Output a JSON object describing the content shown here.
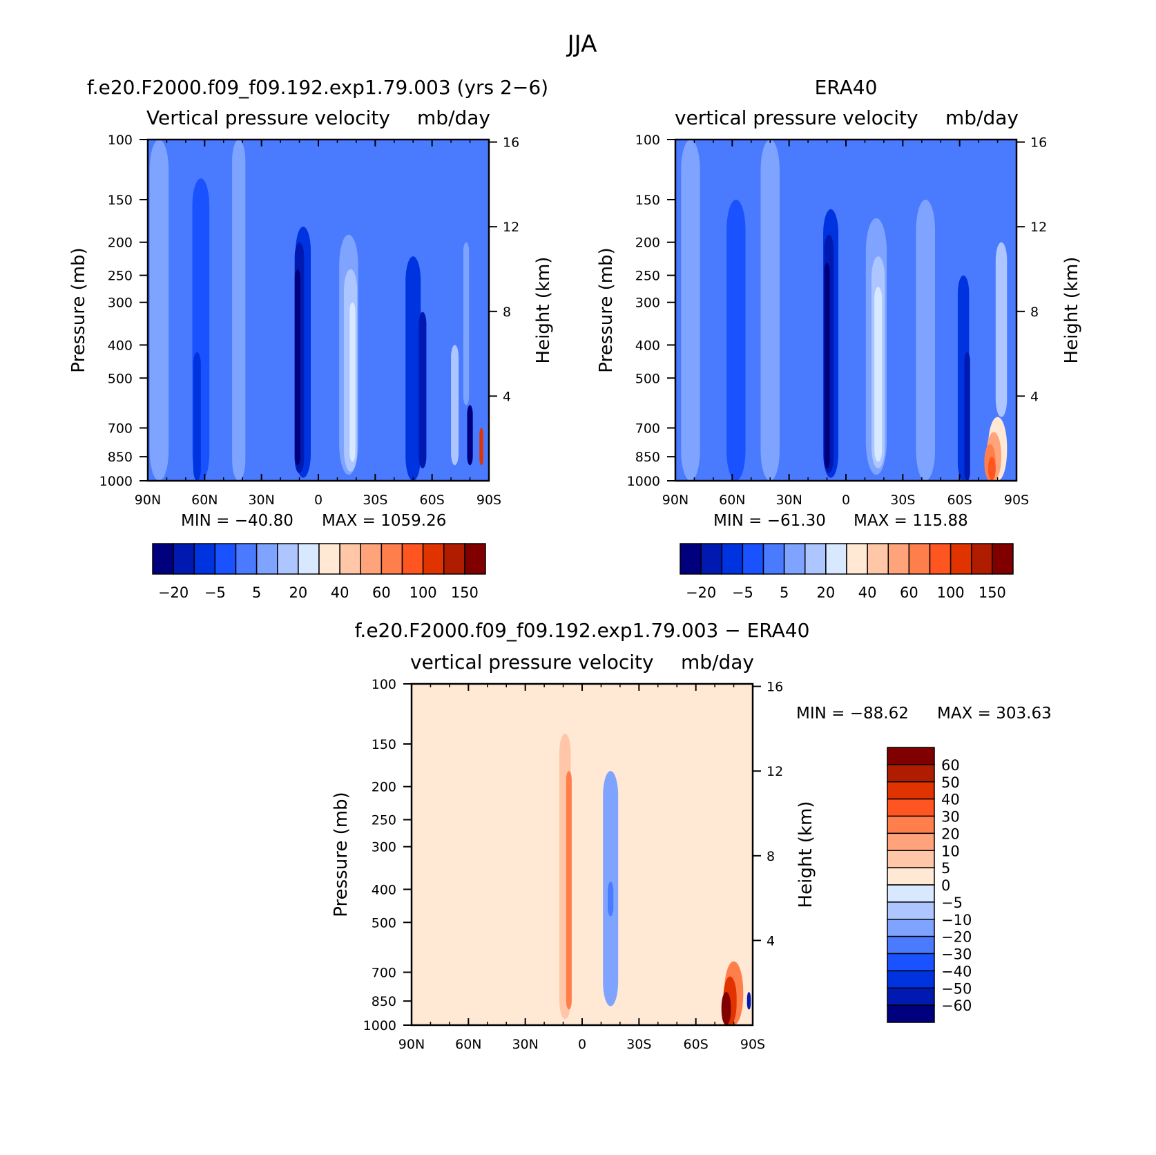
{
  "figure": {
    "title": "JJA"
  },
  "chart_data": [
    {
      "type": "heatmap",
      "panel_title": "f.e20.F2000.f09_f09.192.exp1.79.003 (yrs 2-6)",
      "title": "Vertical pressure velocity",
      "units": "mb/day",
      "xlabel": "",
      "ylabel": "Pressure (mb)",
      "y2label": "Height (km)",
      "x_ticks": [
        "90N",
        "60N",
        "30N",
        "0",
        "30S",
        "60S",
        "90S"
      ],
      "y_ticks": [
        "100",
        "150",
        "200",
        "250",
        "300",
        "400",
        "500",
        "700",
        "850",
        "1000"
      ],
      "y2_ticks": [
        "16",
        "12",
        "8",
        "4"
      ],
      "xlim": [
        90,
        -90
      ],
      "ylim": [
        1000,
        100
      ],
      "y_scale": "log",
      "min_label": "MIN = -40.80",
      "max_label": "MAX = 1059.26",
      "levels": [
        "-20",
        "-5",
        "5",
        "20",
        "40",
        "60",
        "100",
        "150"
      ],
      "colorbar": {
        "orientation": "horizontal",
        "colors": [
          "#00007f",
          "#0019b0",
          "#0033e0",
          "#1a52ff",
          "#4a7bff",
          "#7fa4ff",
          "#adc6ff",
          "#d7e8ff",
          "#ffe8d4",
          "#ffc7a8",
          "#ffa47a",
          "#ff7f4c",
          "#ff5520",
          "#e03300",
          "#b01c00",
          "#800000"
        ],
        "labels": [
          "-20",
          "-5",
          "5",
          "20",
          "40",
          "60",
          "100",
          "150"
        ]
      },
      "features": [
        {
          "lat": 84,
          "ptop": 100,
          "pbot": 1000,
          "width": 10,
          "level": 5
        },
        {
          "lat": 62,
          "ptop": 130,
          "pbot": 1000,
          "width": 9,
          "level": 3
        },
        {
          "lat": 64,
          "ptop": 420,
          "pbot": 1000,
          "width": 4,
          "level": 2
        },
        {
          "lat": 42,
          "ptop": 100,
          "pbot": 1000,
          "width": 7,
          "level": 5
        },
        {
          "lat": 8,
          "ptop": 180,
          "pbot": 980,
          "width": 8,
          "level": 2
        },
        {
          "lat": 10,
          "ptop": 200,
          "pbot": 950,
          "width": 5,
          "level": 1
        },
        {
          "lat": 11,
          "ptop": 240,
          "pbot": 900,
          "width": 3,
          "level": 0
        },
        {
          "lat": -16,
          "ptop": 190,
          "pbot": 960,
          "width": 10,
          "level": 5
        },
        {
          "lat": -17,
          "ptop": 240,
          "pbot": 940,
          "width": 7,
          "level": 6
        },
        {
          "lat": -18,
          "ptop": 300,
          "pbot": 880,
          "width": 3,
          "level": 7
        },
        {
          "lat": -50,
          "ptop": 220,
          "pbot": 1000,
          "width": 8,
          "level": 2
        },
        {
          "lat": -55,
          "ptop": 320,
          "pbot": 920,
          "width": 4,
          "level": 1
        },
        {
          "lat": -72,
          "ptop": 400,
          "pbot": 900,
          "width": 4,
          "level": 6
        },
        {
          "lat": -80,
          "ptop": 600,
          "pbot": 900,
          "width": 3,
          "level": 0
        },
        {
          "lat": -86,
          "ptop": 700,
          "pbot": 900,
          "width": 2,
          "level": 13
        },
        {
          "lat": -78,
          "ptop": 200,
          "pbot": 600,
          "width": 3,
          "level": 5
        }
      ]
    },
    {
      "type": "heatmap",
      "panel_title": "ERA40",
      "title": "vertical pressure velocity",
      "units": "mb/day",
      "xlabel": "",
      "ylabel": "Pressure (mb)",
      "y2label": "Height (km)",
      "x_ticks": [
        "90N",
        "60N",
        "30N",
        "0",
        "30S",
        "60S",
        "90S"
      ],
      "y_ticks": [
        "100",
        "150",
        "200",
        "250",
        "300",
        "400",
        "500",
        "700",
        "850",
        "1000"
      ],
      "y2_ticks": [
        "16",
        "12",
        "8",
        "4"
      ],
      "xlim": [
        90,
        -90
      ],
      "ylim": [
        1000,
        100
      ],
      "y_scale": "log",
      "min_label": "MIN = -61.30",
      "max_label": "MAX = 115.88",
      "levels": [
        "-20",
        "-5",
        "5",
        "20",
        "40",
        "60",
        "100",
        "150"
      ],
      "colorbar": {
        "orientation": "horizontal",
        "colors": [
          "#00007f",
          "#0019b0",
          "#0033e0",
          "#1a52ff",
          "#4a7bff",
          "#7fa4ff",
          "#adc6ff",
          "#d7e8ff",
          "#ffe8d4",
          "#ffc7a8",
          "#ffa47a",
          "#ff7f4c",
          "#ff5520",
          "#e03300",
          "#b01c00",
          "#800000"
        ],
        "labels": [
          "-20",
          "-5",
          "5",
          "20",
          "40",
          "60",
          "100",
          "150"
        ]
      },
      "features": [
        {
          "lat": 82,
          "ptop": 100,
          "pbot": 1000,
          "width": 10,
          "level": 5
        },
        {
          "lat": 58,
          "ptop": 150,
          "pbot": 1000,
          "width": 10,
          "level": 3
        },
        {
          "lat": 40,
          "ptop": 100,
          "pbot": 1000,
          "width": 10,
          "level": 5
        },
        {
          "lat": 8,
          "ptop": 160,
          "pbot": 980,
          "width": 8,
          "level": 2
        },
        {
          "lat": 9,
          "ptop": 190,
          "pbot": 950,
          "width": 5,
          "level": 1
        },
        {
          "lat": 10,
          "ptop": 230,
          "pbot": 920,
          "width": 3,
          "level": 0
        },
        {
          "lat": -16,
          "ptop": 170,
          "pbot": 960,
          "width": 11,
          "level": 5
        },
        {
          "lat": -17,
          "ptop": 220,
          "pbot": 920,
          "width": 7,
          "level": 6
        },
        {
          "lat": -17,
          "ptop": 270,
          "pbot": 880,
          "width": 4,
          "level": 7
        },
        {
          "lat": -42,
          "ptop": 150,
          "pbot": 1000,
          "width": 10,
          "level": 5
        },
        {
          "lat": -62,
          "ptop": 250,
          "pbot": 1000,
          "width": 6,
          "level": 2
        },
        {
          "lat": -64,
          "ptop": 420,
          "pbot": 1000,
          "width": 3,
          "level": 1
        },
        {
          "lat": -82,
          "ptop": 200,
          "pbot": 650,
          "width": 6,
          "level": 6
        },
        {
          "lat": -80,
          "ptop": 650,
          "pbot": 1000,
          "width": 10,
          "level": 8
        },
        {
          "lat": -78,
          "ptop": 720,
          "pbot": 1000,
          "width": 8,
          "level": 10
        },
        {
          "lat": -76,
          "ptop": 780,
          "pbot": 1000,
          "width": 6,
          "level": 11
        },
        {
          "lat": -77,
          "ptop": 850,
          "pbot": 1000,
          "width": 4,
          "level": 12
        }
      ]
    },
    {
      "type": "heatmap",
      "panel_title": "f.e20.F2000.f09_f09.192.exp1.79.003 - ERA40",
      "title": "vertical pressure velocity",
      "units": "mb/day",
      "xlabel": "",
      "ylabel": "Pressure (mb)",
      "y2label": "Height (km)",
      "x_ticks": [
        "90N",
        "60N",
        "30N",
        "0",
        "30S",
        "60S",
        "90S"
      ],
      "y_ticks": [
        "100",
        "150",
        "200",
        "250",
        "300",
        "400",
        "500",
        "700",
        "850",
        "1000"
      ],
      "y2_ticks": [
        "16",
        "12",
        "8",
        "4"
      ],
      "xlim": [
        90,
        -90
      ],
      "ylim": [
        1000,
        100
      ],
      "y_scale": "log",
      "min_label": "MIN = -88.62",
      "max_label": "MAX = 303.63",
      "levels": [
        "60",
        "50",
        "40",
        "30",
        "20",
        "10",
        "5",
        "0",
        "-5",
        "-10",
        "-20",
        "-30",
        "-40",
        "-50",
        "-60"
      ],
      "colorbar": {
        "orientation": "vertical",
        "colors": [
          "#800000",
          "#b01c00",
          "#e03300",
          "#ff5520",
          "#ff7f4c",
          "#ffa47a",
          "#ffc7a8",
          "#ffe8d4",
          "#d7e8ff",
          "#adc6ff",
          "#7fa4ff",
          "#4a7bff",
          "#1a52ff",
          "#0033e0",
          "#0019b0",
          "#00007f"
        ],
        "labels": [
          "60",
          "50",
          "40",
          "30",
          "20",
          "10",
          "5",
          "0",
          "-5",
          "-10",
          "-20",
          "-30",
          "-40",
          "-50",
          "-60"
        ]
      },
      "features": [
        {
          "lat": 75,
          "ptop": 100,
          "pbot": 1000,
          "width": 8,
          "level": 8
        },
        {
          "lat": 55,
          "ptop": 140,
          "pbot": 1000,
          "width": 6,
          "level": 8
        },
        {
          "lat": 22,
          "ptop": 110,
          "pbot": 1000,
          "width": 9,
          "level": 8
        },
        {
          "lat": 9,
          "ptop": 140,
          "pbot": 960,
          "width": 6,
          "level": 9
        },
        {
          "lat": 7,
          "ptop": 180,
          "pbot": 900,
          "width": 3,
          "level": 11
        },
        {
          "lat": -15,
          "ptop": 180,
          "pbot": 880,
          "width": 8,
          "level": 5
        },
        {
          "lat": -15,
          "ptop": 380,
          "pbot": 480,
          "width": 3,
          "level": 4
        },
        {
          "lat": -45,
          "ptop": 110,
          "pbot": 1000,
          "width": 12,
          "level": 8
        },
        {
          "lat": -70,
          "ptop": 110,
          "pbot": 400,
          "width": 8,
          "level": 8
        },
        {
          "lat": -80,
          "ptop": 650,
          "pbot": 1000,
          "width": 10,
          "level": 11
        },
        {
          "lat": -78,
          "ptop": 720,
          "pbot": 1000,
          "width": 7,
          "level": 13
        },
        {
          "lat": -76,
          "ptop": 800,
          "pbot": 1000,
          "width": 5,
          "level": 15
        },
        {
          "lat": -88,
          "ptop": 800,
          "pbot": 900,
          "width": 2,
          "level": 1
        }
      ]
    }
  ]
}
